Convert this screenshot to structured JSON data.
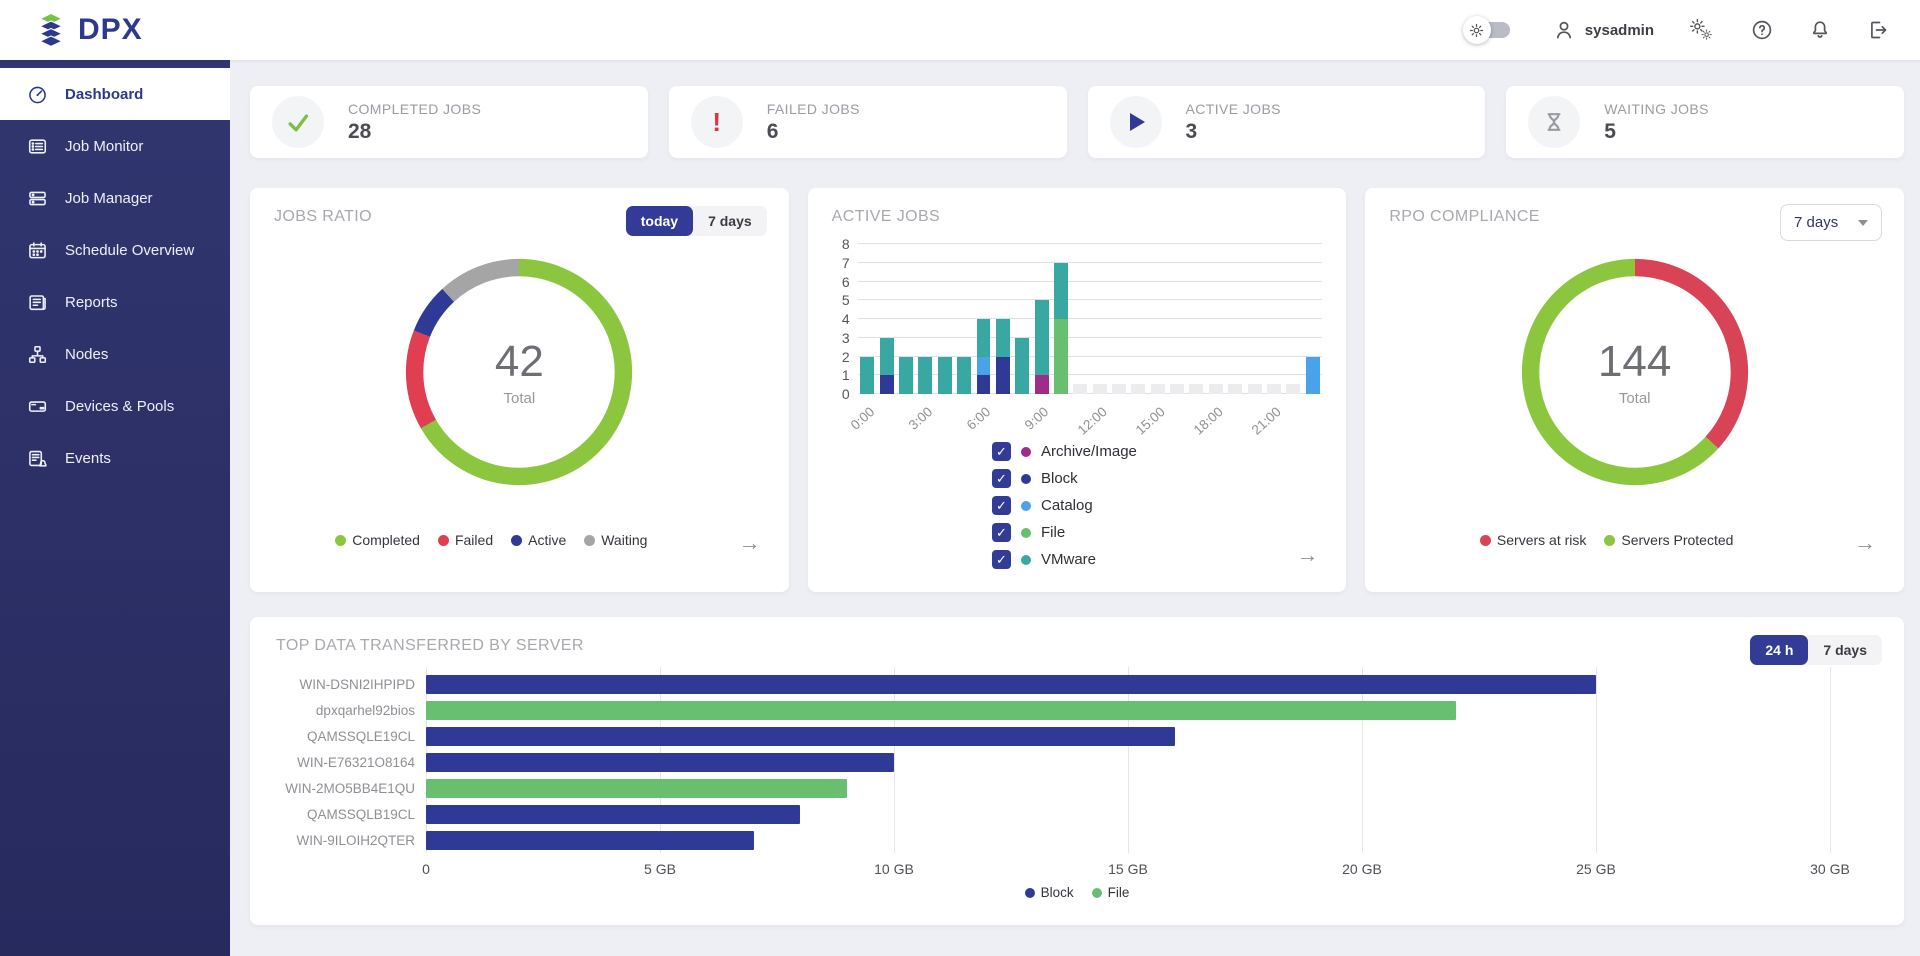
{
  "header": {
    "logo_text": "DPX",
    "user_name": "sysadmin"
  },
  "sidebar": {
    "items": [
      {
        "label": "Dashboard",
        "active": true
      },
      {
        "label": "Job Monitor"
      },
      {
        "label": "Job Manager"
      },
      {
        "label": "Schedule Overview"
      },
      {
        "label": "Reports"
      },
      {
        "label": "Nodes"
      },
      {
        "label": "Devices & Pools"
      },
      {
        "label": "Events"
      }
    ]
  },
  "stat_cards": [
    {
      "label": "COMPLETED JOBS",
      "value": "28",
      "icon": "check-icon",
      "icon_color": "#7ac143"
    },
    {
      "label": "FAILED JOBS",
      "value": "6",
      "icon": "exclamation-icon",
      "icon_color": "#dd3347"
    },
    {
      "label": "ACTIVE JOBS",
      "value": "3",
      "icon": "play-icon",
      "icon_color": "#2e3a96"
    },
    {
      "label": "WAITING JOBS",
      "value": "5",
      "icon": "hourglass-icon",
      "icon_color": "#9a9ba1"
    }
  ],
  "cards": {
    "jobs_ratio": {
      "title": "JOBS RATIO",
      "toggle": [
        "today",
        "7 days"
      ],
      "toggle_active": "today"
    },
    "active_jobs": {
      "title": "ACTIVE JOBS"
    },
    "rpo": {
      "title": "RPO COMPLIANCE",
      "dropdown_value": "7 days"
    },
    "top_data": {
      "title": "TOP DATA TRANSFERRED BY SERVER",
      "toggle": [
        "24 h",
        "7 days"
      ],
      "toggle_active": "24 h"
    }
  },
  "chart_data": [
    {
      "id": "jobs_ratio_donut",
      "type": "pie",
      "title": "JOBS RATIO",
      "center_value": "42",
      "center_label": "Total",
      "segments": [
        {
          "label": "Completed",
          "value": 28,
          "color": "#8cc63f"
        },
        {
          "label": "Failed",
          "value": 6,
          "color": "#e03e51"
        },
        {
          "label": "Active",
          "value": 3,
          "color": "#2e3a96"
        },
        {
          "label": "Waiting",
          "value": 5,
          "color": "#a5a5a5"
        }
      ],
      "legend_position": "bottom"
    },
    {
      "id": "active_jobs_stacked",
      "type": "bar",
      "stacked": true,
      "title": "ACTIVE JOBS",
      "categories": [
        "0:00",
        "1:00",
        "2:00",
        "3:00",
        "4:00",
        "5:00",
        "6:00",
        "7:00",
        "8:00",
        "9:00",
        "10:00",
        "11:00",
        "12:00",
        "13:00",
        "14:00",
        "15:00",
        "16:00",
        "17:00",
        "18:00",
        "19:00",
        "20:00",
        "21:00",
        "22:00",
        "23:00"
      ],
      "x_tick_every": 3,
      "ylim": [
        0,
        8
      ],
      "empty_placeholder_height": 0.55,
      "placeholder_color": "#ececee",
      "series": [
        {
          "name": "Archive/Image",
          "color": "#a02c8a",
          "values": [
            0,
            0,
            0,
            0,
            0,
            0,
            0,
            0,
            0,
            1,
            0,
            0,
            0,
            0,
            0,
            0,
            0,
            0,
            0,
            0,
            0,
            0,
            0,
            0
          ]
        },
        {
          "name": "Block",
          "color": "#2e3a96",
          "values": [
            0,
            1,
            0,
            0,
            0,
            0,
            1,
            2,
            0,
            0,
            0,
            0,
            0,
            0,
            0,
            0,
            0,
            0,
            0,
            0,
            0,
            0,
            0,
            0
          ]
        },
        {
          "name": "Catalog",
          "color": "#4aa3e8",
          "values": [
            0,
            0,
            0,
            0,
            0,
            0,
            1,
            0,
            0,
            0,
            0,
            0,
            0,
            0,
            0,
            0,
            0,
            0,
            0,
            0,
            0,
            0,
            0,
            2
          ]
        },
        {
          "name": "File",
          "color": "#68bf6f",
          "values": [
            0,
            0,
            0,
            0,
            0,
            0,
            0,
            0,
            0,
            0,
            4,
            0,
            0,
            0,
            0,
            0,
            0,
            0,
            0,
            0,
            0,
            0,
            0,
            0
          ]
        },
        {
          "name": "VMware",
          "color": "#39a8a3",
          "values": [
            2,
            2,
            2,
            2,
            2,
            2,
            2,
            2,
            3,
            4,
            3,
            0,
            0,
            0,
            0,
            0,
            0,
            0,
            0,
            0,
            0,
            0,
            0,
            0
          ]
        }
      ],
      "legend_checkboxes": true,
      "legend_position": "bottom"
    },
    {
      "id": "rpo_donut",
      "type": "pie",
      "title": "RPO COMPLIANCE",
      "center_value": "144",
      "center_label": "Total",
      "segments": [
        {
          "label": "Servers at risk",
          "value": 53,
          "color": "#d84355"
        },
        {
          "label": "Servers Protected",
          "value": 91,
          "color": "#8cc63f"
        }
      ],
      "legend_position": "bottom"
    },
    {
      "id": "top_data_bars",
      "type": "bar",
      "orientation": "horizontal",
      "title": "TOP DATA TRANSFERRED BY SERVER",
      "categories": [
        "WIN-DSNI2IHPIPD",
        "dpxqarhel92bios",
        "QAMSSQLE19CL",
        "WIN-E76321O8164",
        "WIN-2MO5BB4E1QU",
        "QAMSSQLB19CL",
        "WIN-9ILOIH2QTER"
      ],
      "values_gb": [
        25,
        22,
        16,
        10,
        9,
        8,
        7
      ],
      "bar_series": [
        "Block",
        "File",
        "Block",
        "Block",
        "File",
        "Block",
        "Block"
      ],
      "series_colors": {
        "Block": "#2e3a96",
        "File": "#68bf6f"
      },
      "xlim": [
        0,
        30
      ],
      "x_ticks": [
        {
          "value": 0,
          "label": "0"
        },
        {
          "value": 5,
          "label": "5 GB"
        },
        {
          "value": 10,
          "label": "10 GB"
        },
        {
          "value": 15,
          "label": "15 GB"
        },
        {
          "value": 20,
          "label": "20 GB"
        },
        {
          "value": 25,
          "label": "25 GB"
        },
        {
          "value": 30,
          "label": "30 GB"
        }
      ],
      "legend": [
        "Block",
        "File"
      ],
      "legend_position": "bottom"
    }
  ]
}
